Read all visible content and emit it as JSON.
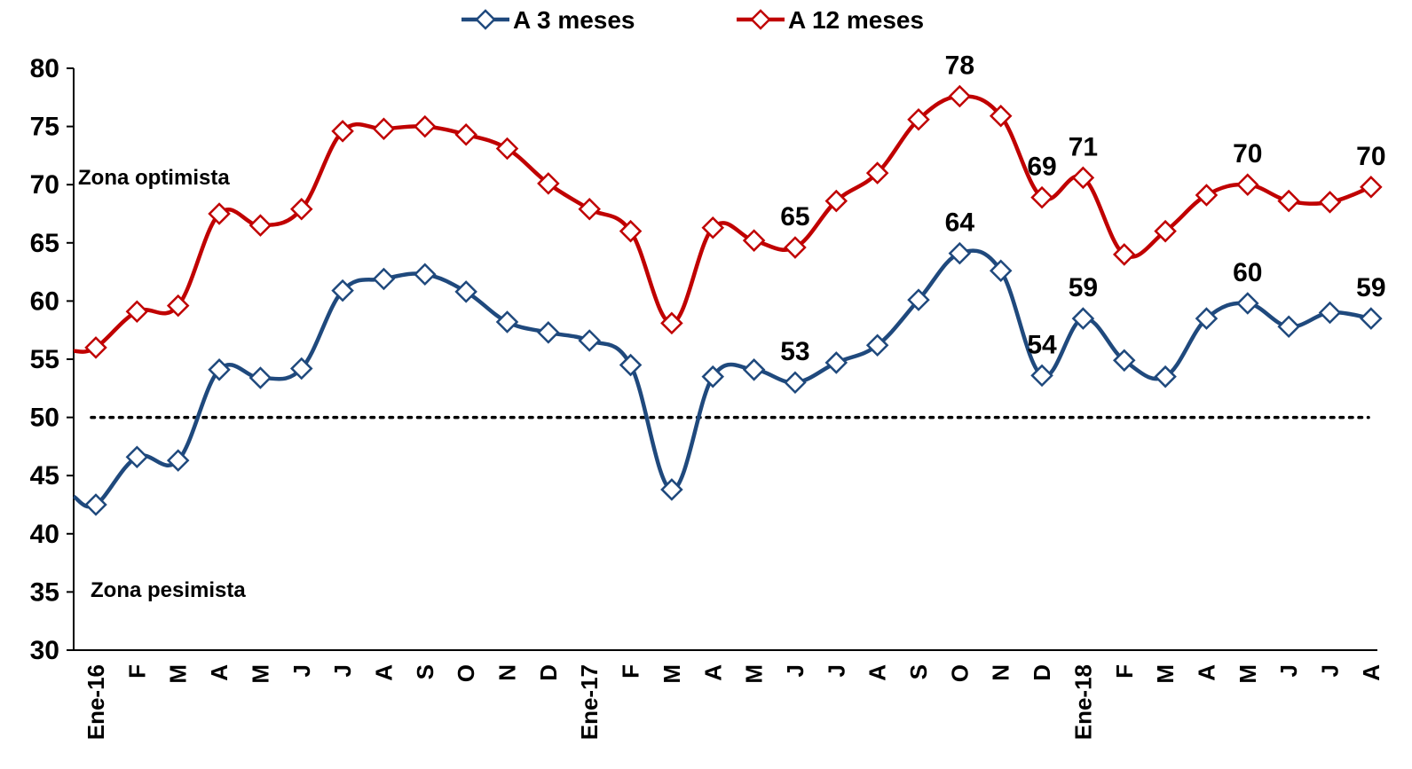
{
  "chart_data": {
    "type": "line",
    "categories": [
      "Ene-16",
      "F",
      "M",
      "A",
      "M",
      "J",
      "J",
      "A",
      "S",
      "O",
      "N",
      "D",
      "Ene-17",
      "F",
      "M",
      "A",
      "M",
      "J",
      "J",
      "A",
      "S",
      "O",
      "N",
      "D",
      "Ene-18",
      "F",
      "M",
      "A",
      "M",
      "J",
      "J",
      "A"
    ],
    "series": [
      {
        "name": "A 3 meses",
        "color": "#1f497d",
        "values": [
          42.5,
          46.6,
          46.3,
          54.1,
          53.4,
          54.2,
          60.9,
          61.9,
          62.3,
          60.8,
          58.2,
          57.3,
          56.6,
          54.5,
          43.8,
          53.5,
          54.1,
          53.0,
          54.7,
          56.2,
          60.1,
          64.1,
          62.6,
          53.6,
          58.5,
          54.9,
          53.5,
          58.5,
          59.8,
          57.8,
          59.0,
          58.5
        ],
        "start_value": 43.2
      },
      {
        "name": "A 12 meses",
        "color": "#c00000",
        "values": [
          56.0,
          59.1,
          59.6,
          67.5,
          66.5,
          67.9,
          74.6,
          74.8,
          75.0,
          74.3,
          73.1,
          70.1,
          67.9,
          66.0,
          58.1,
          66.3,
          65.2,
          64.6,
          68.6,
          71.0,
          75.6,
          77.6,
          75.9,
          68.9,
          70.6,
          64.0,
          66.0,
          69.1,
          70.0,
          68.6,
          68.5,
          69.8
        ],
        "start_value": 55.7
      }
    ],
    "data_labels": [
      {
        "series": 1,
        "index": 17,
        "text": "65"
      },
      {
        "series": 1,
        "index": 21,
        "text": "78"
      },
      {
        "series": 1,
        "index": 23,
        "text": "69"
      },
      {
        "series": 1,
        "index": 24,
        "text": "71"
      },
      {
        "series": 1,
        "index": 28,
        "text": "70"
      },
      {
        "series": 1,
        "index": 31,
        "text": "70"
      },
      {
        "series": 0,
        "index": 17,
        "text": "53"
      },
      {
        "series": 0,
        "index": 21,
        "text": "64"
      },
      {
        "series": 0,
        "index": 23,
        "text": "54"
      },
      {
        "series": 0,
        "index": 24,
        "text": "59"
      },
      {
        "series": 0,
        "index": 28,
        "text": "60"
      },
      {
        "series": 0,
        "index": 31,
        "text": "59"
      }
    ],
    "ylim": [
      30,
      80
    ],
    "yticks": [
      30,
      35,
      40,
      45,
      50,
      55,
      60,
      65,
      70,
      75,
      80
    ],
    "reference_line": 50,
    "zone_labels": {
      "upper": "Zona optimista",
      "lower": "Zona pesimista"
    },
    "legend_position": "top-center",
    "grid": false
  }
}
